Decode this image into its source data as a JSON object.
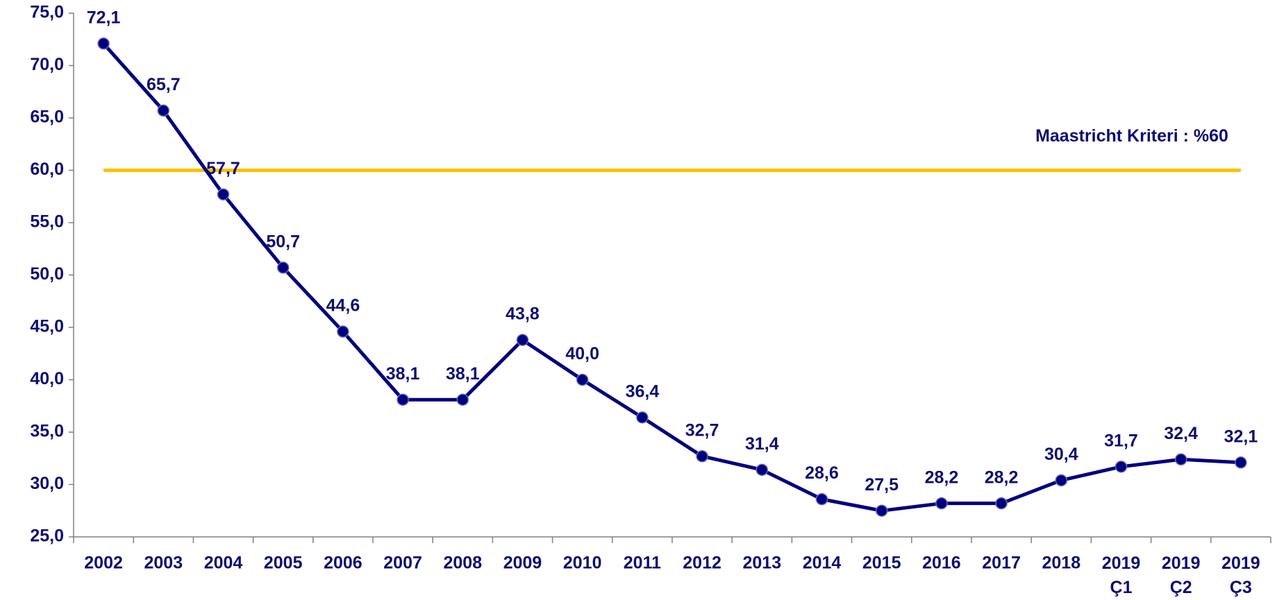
{
  "chart_data": {
    "type": "line",
    "categories": [
      "2002",
      "2003",
      "2004",
      "2005",
      "2006",
      "2007",
      "2008",
      "2009",
      "2010",
      "2011",
      "2012",
      "2013",
      "2014",
      "2015",
      "2016",
      "2017",
      "2018",
      "2019 Ç1",
      "2019 Ç2",
      "2019 Ç3"
    ],
    "series": [
      {
        "color": "#000080",
        "values": [
          72.1,
          65.7,
          57.7,
          50.7,
          44.6,
          38.1,
          38.1,
          43.8,
          40.0,
          36.4,
          32.7,
          31.4,
          28.6,
          27.5,
          28.2,
          28.2,
          30.4,
          31.7,
          32.4,
          32.1
        ],
        "value_labels": [
          "72,1",
          "65,7",
          "57,7",
          "50,7",
          "44,6",
          "38,1",
          "38,1",
          "43,8",
          "40,0",
          "36,4",
          "32,7",
          "31,4",
          "28,6",
          "27,5",
          "28,2",
          "28,2",
          "30,4",
          "31,7",
          "32,4",
          "32,1"
        ]
      }
    ],
    "ylim": [
      25,
      75
    ],
    "yticks": [
      {
        "value": 25,
        "label": "25,0"
      },
      {
        "value": 30,
        "label": "30,0"
      },
      {
        "value": 35,
        "label": "35,0"
      },
      {
        "value": 40,
        "label": "40,0"
      },
      {
        "value": 45,
        "label": "45,0"
      },
      {
        "value": 50,
        "label": "50,0"
      },
      {
        "value": 55,
        "label": "55,0"
      },
      {
        "value": 60,
        "label": "60,0"
      },
      {
        "value": 65,
        "label": "65,0"
      },
      {
        "value": 70,
        "label": "70,0"
      },
      {
        "value": 75,
        "label": "75,0"
      }
    ],
    "reference_line": {
      "value": 60,
      "color": "#ffc000",
      "label": "Maastricht Kriteri : %60"
    }
  }
}
